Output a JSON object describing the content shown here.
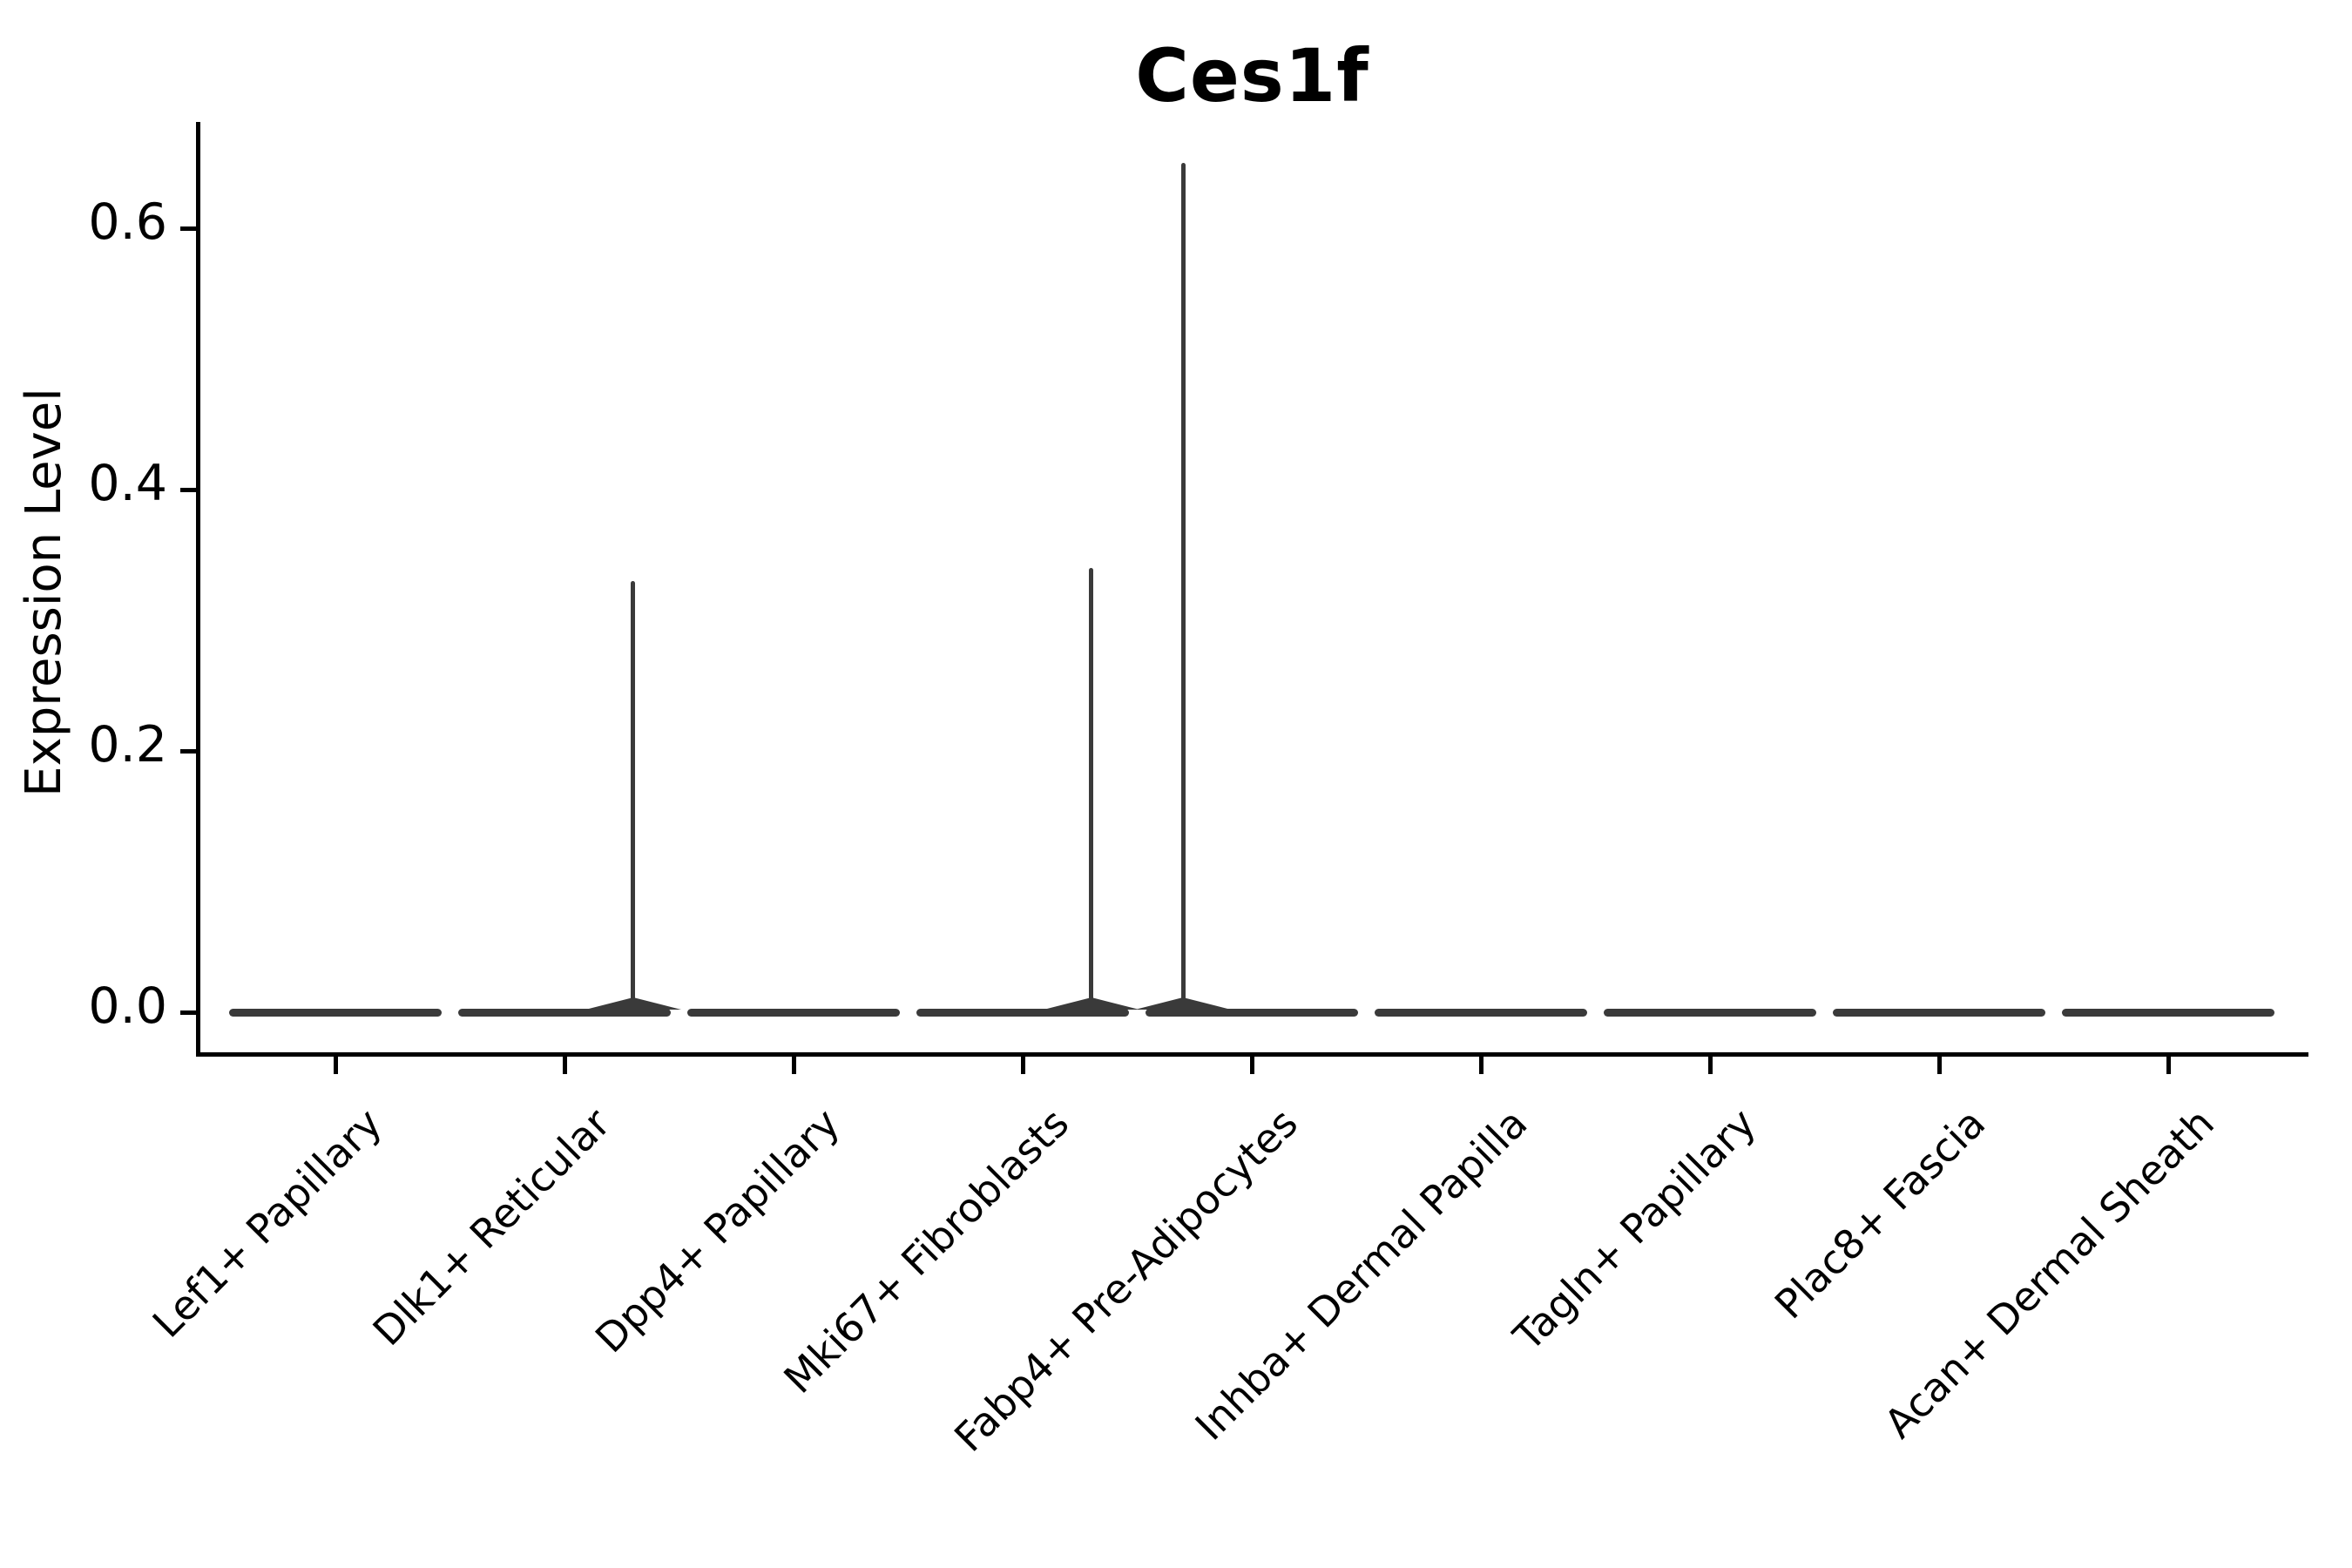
{
  "chart_data": {
    "type": "violin",
    "title": "Ces1f",
    "xlabel": "",
    "ylabel": "Expression Level",
    "ylim": [
      -0.031,
      0.681
    ],
    "yticks": [
      0.0,
      0.2,
      0.4,
      0.6
    ],
    "ytick_labels": [
      "0.0",
      "0.2",
      "0.4",
      "0.6"
    ],
    "grid": false,
    "legend": "none",
    "categories": [
      "Lef1+ Papillary",
      "Dlk1+ Reticular",
      "Dpp4+ Papillary",
      "Mki67+ Fibroblasts",
      "Fabp4+ Pre-Adipocytes",
      "Inhba+ Dermal Papilla",
      "Tagln+ Papillary",
      "Plac8+ Fascia",
      "Acan+ Dermal Sheath"
    ],
    "series": [
      {
        "name": "max_expression",
        "values": [
          0.0,
          0.33,
          0.0,
          0.34,
          0.65,
          0.0,
          0.0,
          0.0,
          0.0
        ]
      },
      {
        "name": "median_expression",
        "values": [
          0.0,
          0.0,
          0.0,
          0.0,
          0.0,
          0.0,
          0.0,
          0.0,
          0.0
        ]
      }
    ],
    "spikes": [
      {
        "category_index": 1,
        "value": 0.33,
        "x_offset_frac": 0.3
      },
      {
        "category_index": 3,
        "value": 0.34,
        "x_offset_frac": 0.3
      },
      {
        "category_index": 4,
        "value": 0.65,
        "x_offset_frac": -0.3
      }
    ],
    "violin_color": "#3a3a3a",
    "axis_color": "#000000",
    "background_color": "#ffffff",
    "violin_half_width_frac": 0.465
  }
}
